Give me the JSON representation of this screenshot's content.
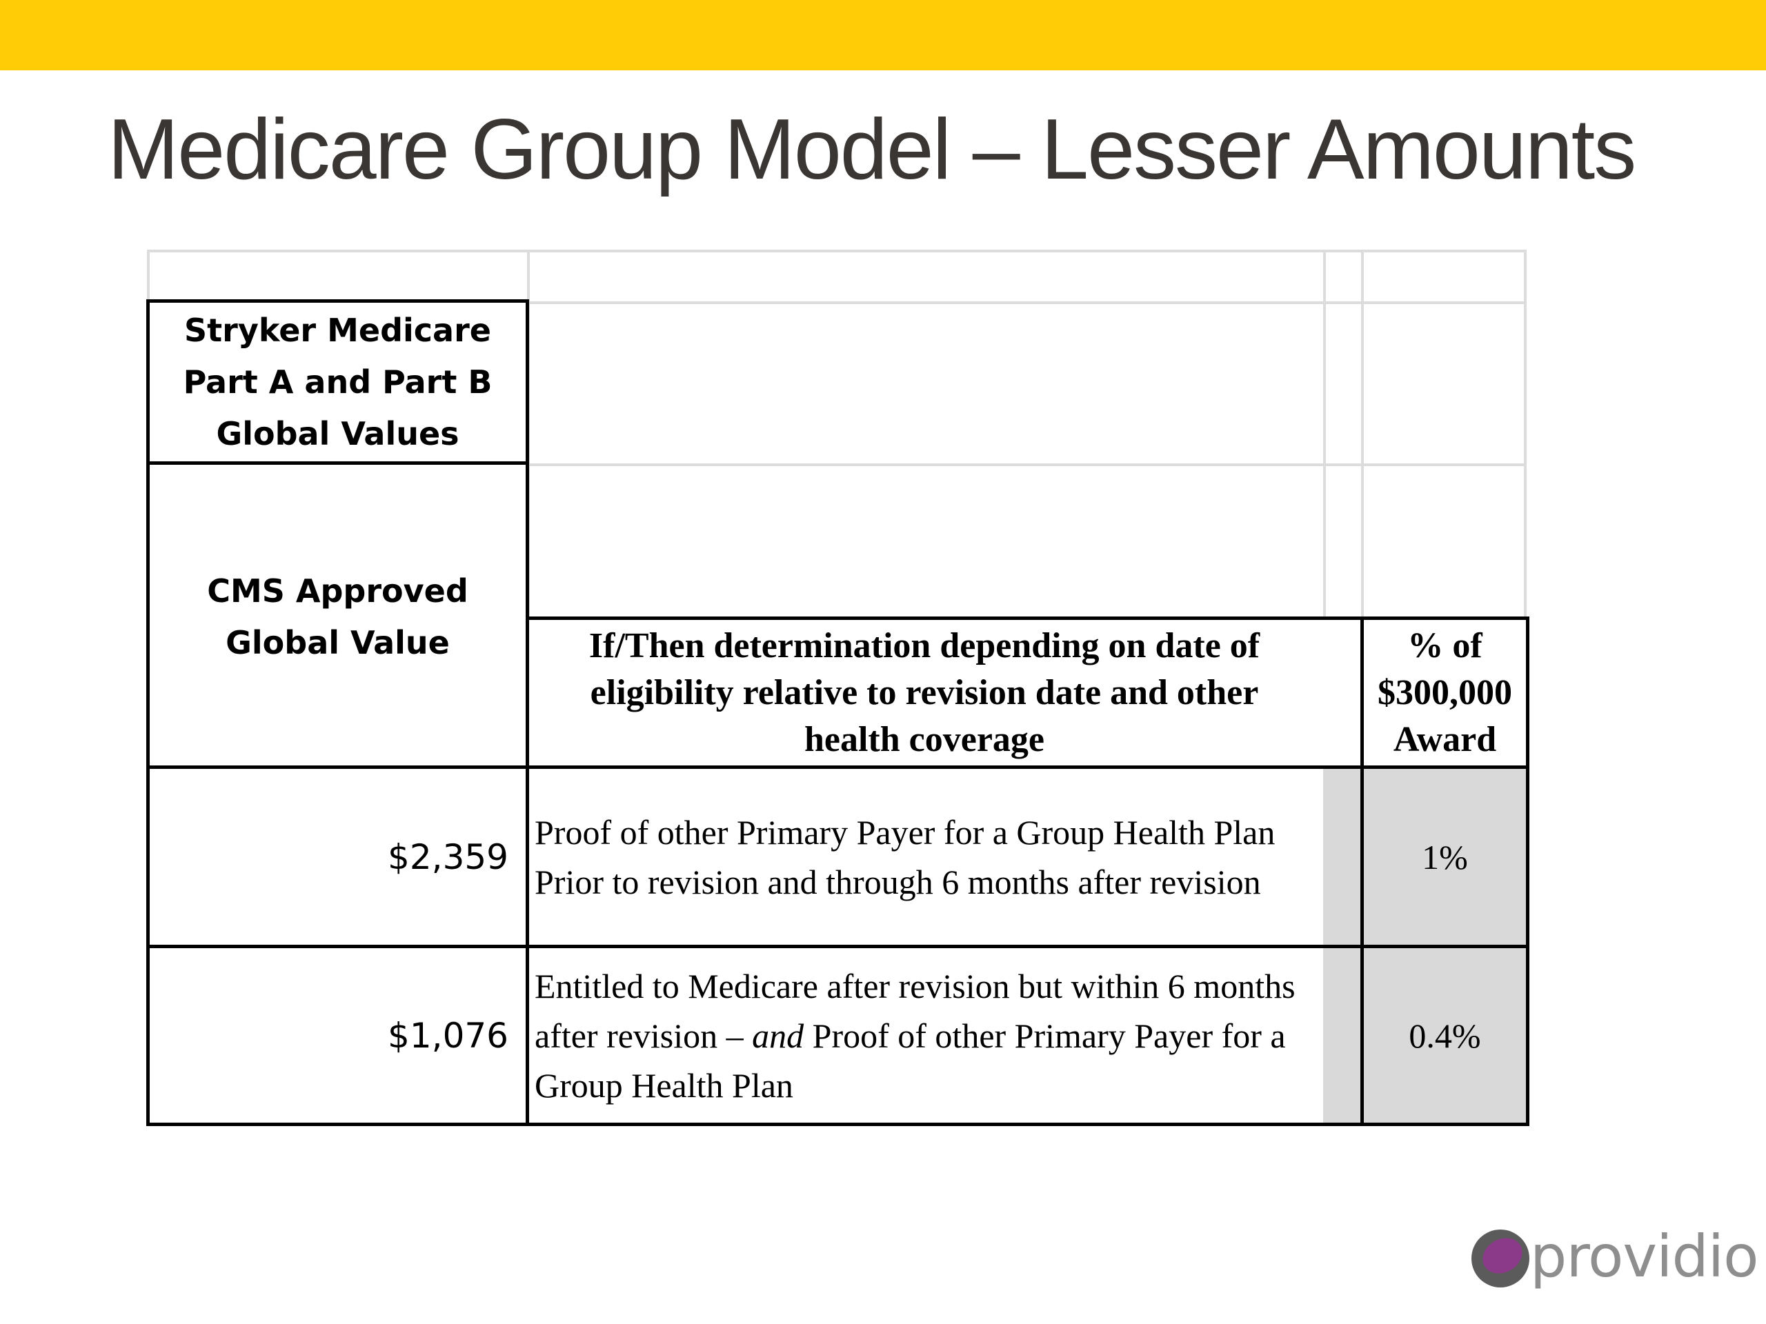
{
  "slide": {
    "title": "Medicare Group Model – Lesser Amounts",
    "accent_color": "#ffcc05"
  },
  "table": {
    "header_global_values": "Stryker Medicare Part A and Part B Global Values",
    "header_cms": "CMS Approved Global Value",
    "header_ifthen": "If/Then determination depending on date of eligibility relative to revision date and other health coverage",
    "header_percent": "% of $300,000 Award",
    "rows": [
      {
        "value": "$2,359",
        "description": "Proof of other Primary Payer for a Group Health Plan Prior to revision and through 6 months after revision",
        "percent": "1%"
      },
      {
        "value": "$1,076",
        "description_part1": "Entitled to Medicare after revision but within 6 months after revision –",
        "description_and": "and",
        "description_part2": "Proof of other Primary Payer for a Group Health Plan",
        "percent": "0.4%"
      }
    ]
  },
  "logo": {
    "text": "providio",
    "icon": "providio-logo-icon",
    "colors": {
      "outer": "#5b5b5b",
      "inner": "#8a3a88"
    }
  }
}
